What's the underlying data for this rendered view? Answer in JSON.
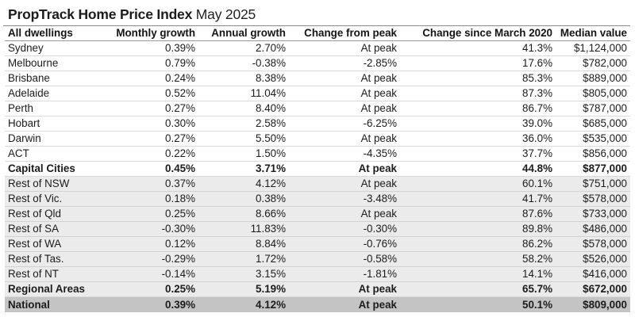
{
  "title": {
    "brand": "PropTrack Home Price Index",
    "period": "May 2025"
  },
  "table": {
    "columns": [
      "All dwellings",
      "Monthly growth",
      "Annual growth",
      "Change from peak",
      "Change since March 2020",
      "Median value"
    ],
    "capital_rows": [
      [
        "Sydney",
        "0.39%",
        "2.70%",
        "At peak",
        "41.3%",
        "$1,124,000"
      ],
      [
        "Melbourne",
        "0.79%",
        "-0.38%",
        "-2.85%",
        "17.6%",
        "$782,000"
      ],
      [
        "Brisbane",
        "0.24%",
        "8.38%",
        "At peak",
        "85.3%",
        "$889,000"
      ],
      [
        "Adelaide",
        "0.52%",
        "11.04%",
        "At peak",
        "87.3%",
        "$805,000"
      ],
      [
        "Perth",
        "0.27%",
        "8.40%",
        "At peak",
        "86.7%",
        "$787,000"
      ],
      [
        "Hobart",
        "0.30%",
        "2.58%",
        "-6.25%",
        "39.0%",
        "$685,000"
      ],
      [
        "Darwin",
        "0.27%",
        "5.50%",
        "At peak",
        "36.0%",
        "$535,000"
      ],
      [
        "ACT",
        "0.22%",
        "1.50%",
        "-4.35%",
        "37.7%",
        "$856,000"
      ]
    ],
    "capital_total": [
      "Capital Cities",
      "0.45%",
      "3.71%",
      "At peak",
      "44.8%",
      "$877,000"
    ],
    "regional_rows": [
      [
        "Rest of NSW",
        "0.37%",
        "4.12%",
        "At peak",
        "60.1%",
        "$751,000"
      ],
      [
        "Rest of Vic.",
        "0.18%",
        "0.38%",
        "-3.48%",
        "41.7%",
        "$578,000"
      ],
      [
        "Rest of Qld",
        "0.25%",
        "8.66%",
        "At peak",
        "87.6%",
        "$733,000"
      ],
      [
        "Rest of SA",
        "-0.30%",
        "11.83%",
        "-0.30%",
        "89.8%",
        "$486,000"
      ],
      [
        "Rest of WA",
        "0.12%",
        "8.84%",
        "-0.76%",
        "86.2%",
        "$578,000"
      ],
      [
        "Rest of Tas.",
        "-0.29%",
        "1.72%",
        "-0.58%",
        "58.2%",
        "$526,000"
      ],
      [
        "Rest of NT",
        "-0.14%",
        "3.15%",
        "-1.81%",
        "14.1%",
        "$416,000"
      ]
    ],
    "regional_total": [
      "Regional Areas",
      "0.25%",
      "5.19%",
      "At peak",
      "65.7%",
      "$672,000"
    ],
    "national_total": [
      "National",
      "0.39%",
      "4.12%",
      "At peak",
      "50.1%",
      "$809,000"
    ]
  },
  "colors": {
    "regional_band": "#ebebeb",
    "national_band": "#c4c4c4",
    "rule": "#9a9a9a"
  }
}
